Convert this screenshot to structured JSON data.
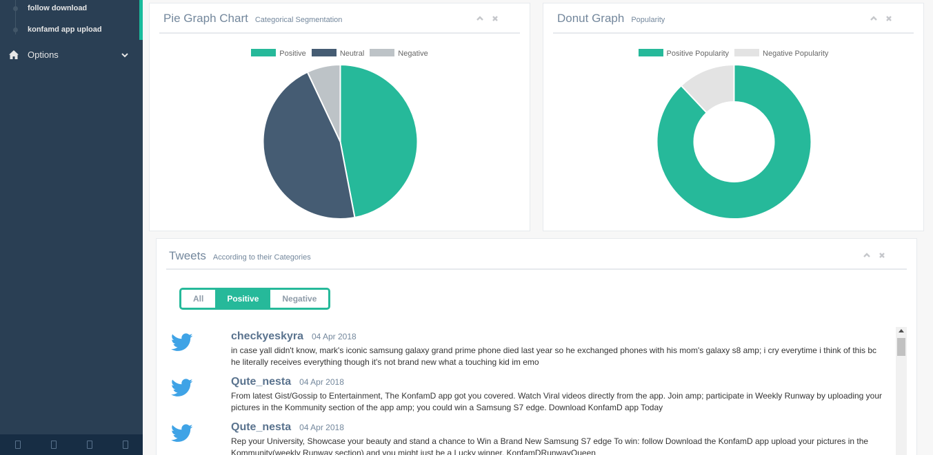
{
  "sidebar": {
    "sub_items": [
      {
        "label": "follow download"
      },
      {
        "label": "konfamd app upload"
      }
    ],
    "options_label": "Options",
    "icons": [
      "home-icon",
      "chevron-down-icon"
    ]
  },
  "pie_panel": {
    "title": "Pie Graph Chart",
    "subtitle": "Categorical Segmentation"
  },
  "donut_panel": {
    "title": "Donut Graph",
    "subtitle": "Popularity"
  },
  "tweets_panel": {
    "title": "Tweets",
    "subtitle": "According to their Categories",
    "filters": [
      {
        "label": "All",
        "active": false
      },
      {
        "label": "Positive",
        "active": true
      },
      {
        "label": "Negative",
        "active": false
      }
    ],
    "tweets": [
      {
        "author": "checkyeskyra",
        "date": "04 Apr 2018",
        "text": "in case yall didn't know, mark's iconic samsung galaxy grand prime phone died last year so he exchanged phones with his mom's galaxy s8 amp; i cry everytime i think of this bc he literally receives everything though it's not brand new what a touching kid im emo"
      },
      {
        "author": "Qute_nesta",
        "date": "04 Apr 2018",
        "text": "From latest Gist/Gossip to Entertainment, The KonfamD app got you covered. Watch Viral videos directly from the app. Join amp; participate in Weekly Runway by uploading your pictures in the Kommunity section of the app amp; you could win a Samsung S7 edge. Download KonfamD app Today"
      },
      {
        "author": "Qute_nesta",
        "date": "04 Apr 2018",
        "text": "Rep your University, Showcase your beauty and stand a chance to Win a Brand New Samsung S7 edge To win: follow Download the KonfamD app upload your pictures in the Kommunity(weekly Runway section) and you might just be a Lucky winner. KonfamDRunwayQueen"
      }
    ]
  },
  "colors": {
    "positive": "#26b99a",
    "neutral": "#455c73",
    "negative": "#bdc3c7",
    "negative_popularity": "#e3e3e3",
    "sidebar": "#2a3f54"
  },
  "chart_data": [
    {
      "type": "pie",
      "categories": [
        "Positive",
        "Neutral",
        "Negative"
      ],
      "values": [
        47,
        46,
        7
      ],
      "legend": "top"
    },
    {
      "type": "pie",
      "variant": "donut",
      "categories": [
        "Positive Popularity",
        "Negative Popularity"
      ],
      "values": [
        88,
        12
      ],
      "legend": "top"
    }
  ]
}
